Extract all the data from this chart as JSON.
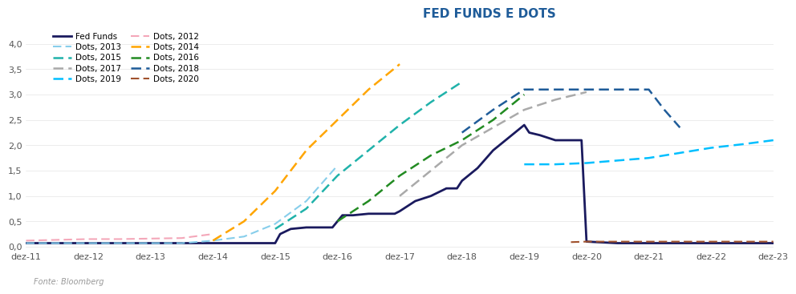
{
  "title": "FED FUNDS E DOTS",
  "title_color": "#1F5C99",
  "ylim": [
    -0.05,
    4.3
  ],
  "yticks": [
    0.0,
    0.5,
    1.0,
    1.5,
    2.0,
    2.5,
    3.0,
    3.5,
    4.0
  ],
  "ytick_labels": [
    "0,0",
    "0,5",
    "1,0",
    "1,5",
    "2,0",
    "2,5",
    "3,0",
    "3,5",
    "4,0"
  ],
  "xtick_labels": [
    "dez-11",
    "dez-12",
    "dez-13",
    "dez-14",
    "dez-15",
    "dez-16",
    "dez-17",
    "dez-18",
    "dez-19",
    "dez-20",
    "dez-21",
    "dez-22",
    "dez-23"
  ],
  "source": "Fonte: Bloomberg",
  "series": [
    {
      "label": "Fed Funds",
      "color": "#1A1A5E",
      "linestyle": "solid",
      "linewidth": 2.0,
      "x": [
        2011,
        2011.5,
        2012,
        2012.5,
        2013,
        2013.5,
        2014,
        2014.75,
        2015.0,
        2015.08,
        2015.25,
        2015.5,
        2015.92,
        2016.0,
        2016.08,
        2016.25,
        2016.5,
        2016.75,
        2016.92,
        2017.0,
        2017.25,
        2017.5,
        2017.75,
        2017.92,
        2018.0,
        2018.25,
        2018.5,
        2018.75,
        2019.0,
        2019.08,
        2019.25,
        2019.5,
        2019.75,
        2019.92,
        2020.0,
        2020.5,
        2021.0,
        2021.5,
        2022.0,
        2022.5,
        2023.0
      ],
      "y": [
        0.07,
        0.07,
        0.07,
        0.07,
        0.07,
        0.07,
        0.07,
        0.07,
        0.07,
        0.25,
        0.35,
        0.38,
        0.38,
        0.5,
        0.62,
        0.62,
        0.65,
        0.65,
        0.65,
        0.7,
        0.9,
        1.0,
        1.15,
        1.15,
        1.3,
        1.55,
        1.9,
        2.15,
        2.4,
        2.25,
        2.2,
        2.1,
        2.1,
        2.1,
        0.1,
        0.07,
        0.07,
        0.07,
        0.07,
        0.07,
        0.07
      ]
    },
    {
      "label": "Dots, 2012",
      "color": "#F4A7B9",
      "linestyle": "dashed",
      "linewidth": 1.5,
      "x": [
        2011,
        2012,
        2012.5,
        2013,
        2013.5,
        2014
      ],
      "y": [
        0.12,
        0.15,
        0.15,
        0.16,
        0.17,
        0.25
      ]
    },
    {
      "label": "Dots, 2013",
      "color": "#87CEEB",
      "linestyle": "dashed",
      "linewidth": 1.5,
      "x": [
        2011,
        2012,
        2013,
        2013.5,
        2014,
        2014.5,
        2015,
        2015.5,
        2016
      ],
      "y": [
        0.07,
        0.07,
        0.07,
        0.07,
        0.12,
        0.2,
        0.45,
        0.9,
        1.6
      ]
    },
    {
      "label": "Dots, 2014",
      "color": "#FFA500",
      "linestyle": "dashed",
      "linewidth": 1.8,
      "x": [
        2014,
        2014.5,
        2015,
        2015.5,
        2016,
        2016.5,
        2017
      ],
      "y": [
        0.12,
        0.5,
        1.1,
        1.9,
        2.5,
        3.1,
        3.6
      ]
    },
    {
      "label": "Dots, 2015",
      "color": "#20B2AA",
      "linestyle": "dashed",
      "linewidth": 1.8,
      "x": [
        2015,
        2015.5,
        2016,
        2016.5,
        2017,
        2017.5,
        2018
      ],
      "y": [
        0.35,
        0.75,
        1.4,
        1.9,
        2.4,
        2.85,
        3.25
      ]
    },
    {
      "label": "Dots, 2016",
      "color": "#228B22",
      "linestyle": "dashed",
      "linewidth": 1.8,
      "x": [
        2016,
        2016.5,
        2017,
        2017.5,
        2018,
        2018.5,
        2019
      ],
      "y": [
        0.5,
        0.9,
        1.4,
        1.8,
        2.1,
        2.5,
        3.0
      ]
    },
    {
      "label": "Dots, 2017",
      "color": "#AAAAAA",
      "linestyle": "dashed",
      "linewidth": 1.8,
      "x": [
        2017,
        2017.5,
        2018,
        2018.5,
        2019,
        2019.5,
        2020
      ],
      "y": [
        1.0,
        1.5,
        2.0,
        2.35,
        2.7,
        2.9,
        3.05
      ]
    },
    {
      "label": "Dots, 2018",
      "color": "#1F5C99",
      "linestyle": "dashed",
      "linewidth": 1.8,
      "x": [
        2018,
        2018.5,
        2019,
        2019.5,
        2020,
        2020.5,
        2021,
        2021.25,
        2021.5
      ],
      "y": [
        2.25,
        2.7,
        3.1,
        3.1,
        3.1,
        3.1,
        3.1,
        2.7,
        2.35
      ]
    },
    {
      "label": "Dots, 2019",
      "color": "#00BFFF",
      "linestyle": "dashed",
      "linewidth": 1.8,
      "x": [
        2019,
        2019.5,
        2020,
        2020.5,
        2021,
        2021.5,
        2022,
        2022.5,
        2023
      ],
      "y": [
        1.625,
        1.625,
        1.65,
        1.7,
        1.75,
        1.85,
        1.95,
        2.02,
        2.1
      ]
    },
    {
      "label": "Dots, 2020",
      "color": "#A0522D",
      "linestyle": "dashed",
      "linewidth": 1.5,
      "x": [
        2019.75,
        2020,
        2020.5,
        2021,
        2021.5,
        2022,
        2022.5,
        2023
      ],
      "y": [
        0.09,
        0.1,
        0.1,
        0.1,
        0.1,
        0.1,
        0.1,
        0.1
      ]
    }
  ],
  "legend_order": [
    0,
    2,
    4,
    6,
    8,
    1,
    3,
    5,
    7,
    9
  ]
}
